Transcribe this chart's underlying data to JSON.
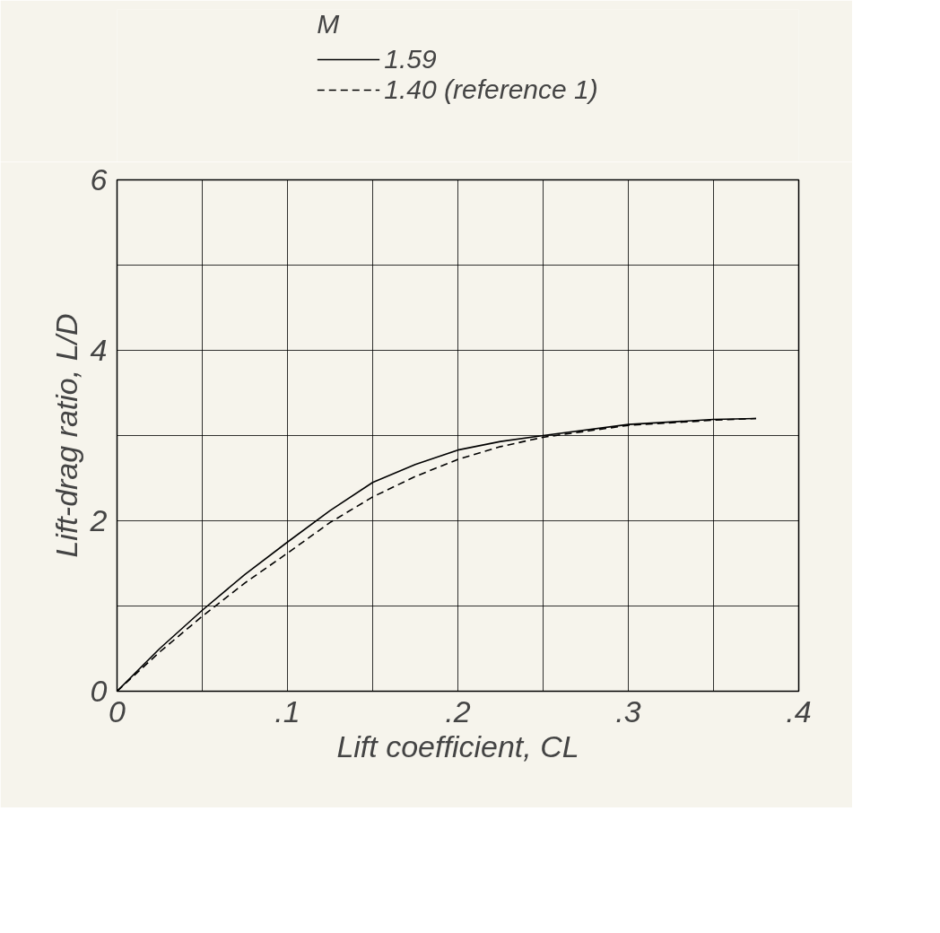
{
  "chart_data": {
    "type": "line",
    "xlabel": "Lift coefficient, CL",
    "ylabel": "Lift-drag ratio, L/D",
    "legend_title": "M",
    "legend": "top",
    "xlim": [
      0,
      0.4
    ],
    "ylim": [
      0,
      6
    ],
    "xticks": [
      0,
      {
        "value": 0.05,
        "label": null
      },
      {
        "value": 0.1,
        "label": ".1"
      },
      {
        "value": 0.15,
        "label": null
      },
      {
        "value": 0.2,
        "label": ".2"
      },
      {
        "value": 0.25,
        "label": null
      },
      {
        "value": 0.3,
        "label": ".3"
      },
      {
        "value": 0.35,
        "label": null
      },
      {
        "value": 0.4,
        "label": ".4"
      }
    ],
    "yticks": [
      0,
      {
        "value": 1,
        "label": null
      },
      2,
      {
        "value": 3,
        "label": null
      },
      4,
      {
        "value": 5,
        "label": null
      },
      6
    ],
    "grid": true,
    "series": [
      {
        "name": "1.59",
        "color": "#000000",
        "line_style": "solid",
        "x": [
          0,
          0.025,
          0.05,
          0.075,
          0.1,
          0.125,
          0.15,
          0.175,
          0.2,
          0.225,
          0.25,
          0.3,
          0.35,
          0.375
        ],
        "values": [
          0,
          0.5,
          0.95,
          1.37,
          1.75,
          2.12,
          2.45,
          2.66,
          2.83,
          2.93,
          3.0,
          3.13,
          3.19,
          3.2
        ]
      },
      {
        "name": "1.40 (reference 1)",
        "color": "#000000",
        "line_style": "dashed",
        "x": [
          0,
          0.025,
          0.05,
          0.075,
          0.1,
          0.125,
          0.15,
          0.175,
          0.2,
          0.225,
          0.25,
          0.3,
          0.35,
          0.375
        ],
        "values": [
          0,
          0.46,
          0.88,
          1.27,
          1.62,
          1.98,
          2.28,
          2.52,
          2.72,
          2.87,
          2.98,
          3.12,
          3.18,
          3.2
        ]
      }
    ]
  }
}
